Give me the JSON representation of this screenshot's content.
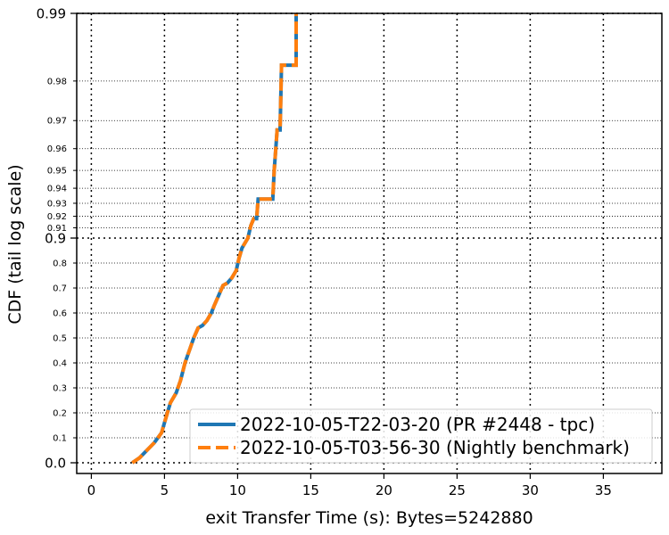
{
  "chart_data": {
    "type": "line",
    "xlabel": "exit Transfer Time (s): Bytes=5242880",
    "ylabel": "CDF (tail log scale)",
    "xlim": [
      -1,
      39
    ],
    "x_ticks": [
      "0",
      "5",
      "10",
      "15",
      "20",
      "25",
      "30",
      "35"
    ],
    "y_scale": "tail-log",
    "y_major_ticks": [
      "0.0",
      "0.9",
      "0.99"
    ],
    "y_minor_ticks": [
      "0.1",
      "0.2",
      "0.3",
      "0.4",
      "0.5",
      "0.6",
      "0.7",
      "0.8",
      "0.91",
      "0.92",
      "0.93",
      "0.94",
      "0.95",
      "0.96",
      "0.97",
      "0.98"
    ],
    "grid": true,
    "legend_position": "bottom-right",
    "series": [
      {
        "name": "2022-10-05-T22-03-20 (PR #2448 - tpc)",
        "color": "#1f77b4",
        "style": "solid",
        "points": [
          [
            2.8,
            0.0
          ],
          [
            3.3,
            0.02
          ],
          [
            3.8,
            0.05
          ],
          [
            4.3,
            0.08
          ],
          [
            4.8,
            0.12
          ],
          [
            5.1,
            0.18
          ],
          [
            5.4,
            0.24
          ],
          [
            5.8,
            0.28
          ],
          [
            6.1,
            0.33
          ],
          [
            6.4,
            0.4
          ],
          [
            6.7,
            0.45
          ],
          [
            7.0,
            0.5
          ],
          [
            7.3,
            0.54
          ],
          [
            7.6,
            0.55
          ],
          [
            7.9,
            0.57
          ],
          [
            8.2,
            0.6
          ],
          [
            8.4,
            0.63
          ],
          [
            8.7,
            0.67
          ],
          [
            9.0,
            0.71
          ],
          [
            9.3,
            0.72
          ],
          [
            9.6,
            0.74
          ],
          [
            9.9,
            0.77
          ],
          [
            10.1,
            0.82
          ],
          [
            10.3,
            0.86
          ],
          [
            10.5,
            0.88
          ],
          [
            10.7,
            0.9
          ],
          [
            10.9,
            0.912
          ],
          [
            11.1,
            0.918
          ],
          [
            11.3,
            0.918
          ],
          [
            11.4,
            0.933
          ],
          [
            11.9,
            0.933
          ],
          [
            12.4,
            0.933
          ],
          [
            12.5,
            0.95
          ],
          [
            12.7,
            0.967
          ],
          [
            12.9,
            0.967
          ],
          [
            13.0,
            0.983
          ],
          [
            13.5,
            0.983
          ],
          [
            14.0,
            0.983
          ],
          [
            14.0,
            0.99
          ]
        ]
      },
      {
        "name": "2022-10-05-T03-56-30 (Nightly benchmark)",
        "color": "#ff7f0e",
        "style": "dashed",
        "points": [
          [
            2.8,
            0.0
          ],
          [
            3.3,
            0.02
          ],
          [
            3.8,
            0.05
          ],
          [
            4.3,
            0.08
          ],
          [
            4.8,
            0.12
          ],
          [
            5.1,
            0.18
          ],
          [
            5.4,
            0.24
          ],
          [
            5.8,
            0.28
          ],
          [
            6.1,
            0.33
          ],
          [
            6.4,
            0.4
          ],
          [
            6.7,
            0.45
          ],
          [
            7.0,
            0.5
          ],
          [
            7.3,
            0.54
          ],
          [
            7.6,
            0.55
          ],
          [
            7.9,
            0.57
          ],
          [
            8.2,
            0.6
          ],
          [
            8.4,
            0.63
          ],
          [
            8.7,
            0.67
          ],
          [
            9.0,
            0.71
          ],
          [
            9.3,
            0.72
          ],
          [
            9.6,
            0.74
          ],
          [
            9.9,
            0.77
          ],
          [
            10.1,
            0.82
          ],
          [
            10.3,
            0.86
          ],
          [
            10.5,
            0.88
          ],
          [
            10.7,
            0.9
          ],
          [
            10.9,
            0.912
          ],
          [
            11.1,
            0.918
          ],
          [
            11.3,
            0.918
          ],
          [
            11.4,
            0.933
          ],
          [
            11.9,
            0.933
          ],
          [
            12.4,
            0.933
          ],
          [
            12.5,
            0.95
          ],
          [
            12.7,
            0.967
          ],
          [
            12.9,
            0.967
          ],
          [
            13.0,
            0.983
          ],
          [
            13.5,
            0.983
          ],
          [
            14.0,
            0.983
          ],
          [
            14.0,
            0.99
          ]
        ]
      }
    ]
  }
}
